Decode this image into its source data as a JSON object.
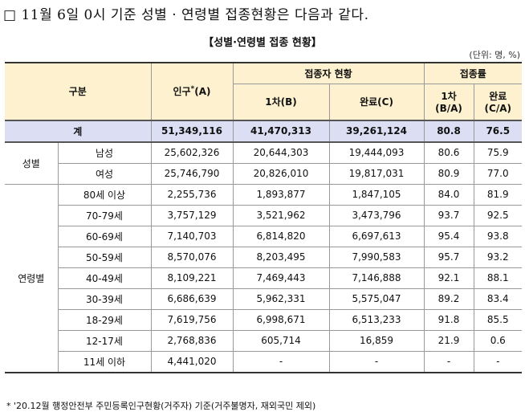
{
  "heading": "□ 11월 6일 0시 기준 성별 · 연령별 접종현황은 다음과 같다.",
  "table": {
    "title": "【성별·연령별 접종 현황】",
    "unit": "(단위: 명, %)",
    "header": {
      "category": "구분",
      "population": {
        "text": "인구",
        "mark": "*",
        "unit": "(A)"
      },
      "vaccinated": "접종자 현황",
      "first": "1차(B)",
      "complete": "완료(C)",
      "rate": "접종률",
      "first_rate": [
        "1차",
        "(B/A)"
      ],
      "complete_rate": [
        "완료",
        "(C/A)"
      ]
    },
    "total": {
      "label": "계",
      "cells": [
        "51,349,116",
        "41,470,313",
        "39,261,124",
        "80.8",
        "76.5"
      ]
    },
    "groups": [
      {
        "label": "성별",
        "rows": [
          {
            "label": "남성",
            "cells": [
              "25,602,326",
              "20,644,303",
              "19,444,093",
              "80.6",
              "75.9"
            ]
          },
          {
            "label": "여성",
            "cells": [
              "25,746,790",
              "20,826,010",
              "19,817,031",
              "80.9",
              "77.0"
            ]
          }
        ]
      },
      {
        "label": "연령별",
        "rows": [
          {
            "label": "80세 이상",
            "cells": [
              "2,255,736",
              "1,893,877",
              "1,847,105",
              "84.0",
              "81.9"
            ]
          },
          {
            "label": "70-79세",
            "cells": [
              "3,757,129",
              "3,521,962",
              "3,473,796",
              "93.7",
              "92.5"
            ]
          },
          {
            "label": "60-69세",
            "cells": [
              "7,140,703",
              "6,814,820",
              "6,697,613",
              "95.4",
              "93.8"
            ]
          },
          {
            "label": "50-59세",
            "cells": [
              "8,570,076",
              "8,203,495",
              "7,990,583",
              "95.7",
              "93.2"
            ]
          },
          {
            "label": "40-49세",
            "cells": [
              "8,109,221",
              "7,469,443",
              "7,146,888",
              "92.1",
              "88.1"
            ]
          },
          {
            "label": "30-39세",
            "cells": [
              "6,686,639",
              "5,962,331",
              "5,575,047",
              "89.2",
              "83.4"
            ]
          },
          {
            "label": "18-29세",
            "cells": [
              "7,619,756",
              "6,998,671",
              "6,513,233",
              "91.8",
              "85.5"
            ]
          },
          {
            "label": "12-17세",
            "cells": [
              "2,768,836",
              "605,714",
              "16,859",
              "21.9",
              "0.6"
            ]
          },
          {
            "label": "11세 이하",
            "cells": [
              "4,441,020",
              "-",
              "-",
              "-",
              "-"
            ]
          }
        ]
      }
    ]
  },
  "footnote": "* '20.12월 행정안전부 주민등록인구현황(거주자) 기준(거주불명자, 재외국민 제외)"
}
